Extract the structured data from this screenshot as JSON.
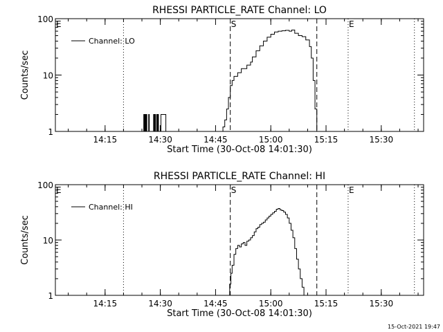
{
  "timestamp": "15-Oct-2021 19:47",
  "chart_data": [
    {
      "type": "line",
      "title": "RHESSI PARTICLE_RATE Channel: LO",
      "xlabel": "Start Time (30-Oct-08 14:01:30)",
      "ylabel": "Counts/sec",
      "y_scale": "log",
      "ylim": [
        1,
        100
      ],
      "xlim": [
        "14:01:30",
        "15:41:30"
      ],
      "x_ticks": [
        "14:15",
        "14:30",
        "14:45",
        "15:00",
        "15:15",
        "15:30"
      ],
      "y_ticks": [
        "1",
        "10",
        "100"
      ],
      "legend": {
        "placement": "top-left",
        "entries": [
          "Channel: LO"
        ]
      },
      "markers": [
        {
          "label": "E",
          "time": "14:01:30",
          "style": "none"
        },
        {
          "label": "",
          "time": "14:20:00",
          "style": "dotted"
        },
        {
          "label": "S",
          "time": "14:49:00",
          "style": "dashed"
        },
        {
          "label": "",
          "time": "15:12:30",
          "style": "dashed"
        },
        {
          "label": "E",
          "time": "15:21:00",
          "style": "dotted"
        },
        {
          "label": "",
          "time": "15:39:00",
          "style": "dotted"
        }
      ],
      "series": [
        {
          "name": "Channel: LO",
          "x": [
            "14:25:20",
            "14:25:30",
            "14:25:40",
            "14:25:50",
            "14:26:00",
            "14:26:10",
            "14:26:20",
            "14:26:40",
            "14:26:50",
            "14:27:00",
            "14:28:00",
            "14:28:10",
            "14:28:20",
            "14:28:30",
            "14:28:40",
            "14:28:50",
            "14:29:00",
            "14:29:10",
            "14:29:20",
            "14:29:30",
            "14:29:40",
            "14:30:00",
            "14:30:10",
            "14:31:20",
            "14:31:30",
            "14:32:40",
            "14:32:50",
            "14:46:30",
            "14:47:00",
            "14:47:30",
            "14:48:00",
            "14:48:30",
            "14:49:00",
            "14:49:30",
            "14:50:00",
            "14:51:00",
            "14:52:00",
            "14:52:40",
            "14:53:30",
            "14:54:30",
            "14:55:00",
            "14:56:00",
            "14:57:00",
            "14:58:00",
            "14:59:00",
            "15:00:00",
            "15:01:00",
            "15:02:00",
            "15:03:00",
            "15:04:00",
            "15:05:00",
            "15:05:40",
            "15:06:30",
            "15:07:30",
            "15:08:30",
            "15:09:30",
            "15:10:30",
            "15:11:00",
            "15:11:30",
            "15:12:00",
            "15:12:30"
          ],
          "values": [
            1,
            2,
            1,
            2,
            1,
            2,
            1,
            1,
            2,
            1,
            1,
            2,
            1,
            2,
            1,
            1,
            2,
            1,
            2,
            1,
            1,
            1,
            2,
            2,
            1,
            1,
            1,
            1,
            1.2,
            1.6,
            2.5,
            4,
            6.5,
            8,
            9.5,
            11,
            13,
            13,
            15,
            17,
            21,
            27,
            33,
            40,
            47,
            53,
            58,
            60,
            61,
            62,
            60,
            63,
            55,
            50,
            48,
            42,
            32,
            20,
            8,
            2.5,
            1
          ]
        }
      ]
    },
    {
      "type": "line",
      "title": "RHESSI PARTICLE_RATE Channel: HI",
      "xlabel": "Start Time (30-Oct-08 14:01:30)",
      "ylabel": "Counts/sec",
      "y_scale": "log",
      "ylim": [
        1,
        100
      ],
      "xlim": [
        "14:01:30",
        "15:41:30"
      ],
      "x_ticks": [
        "14:15",
        "14:30",
        "14:45",
        "15:00",
        "15:15",
        "15:30"
      ],
      "y_ticks": [
        "1",
        "10",
        "100"
      ],
      "legend": {
        "placement": "top-left",
        "entries": [
          "Channel: HI"
        ]
      },
      "markers": [
        {
          "label": "E",
          "time": "14:01:30",
          "style": "none"
        },
        {
          "label": "",
          "time": "14:20:00",
          "style": "dotted"
        },
        {
          "label": "S",
          "time": "14:49:00",
          "style": "dashed"
        },
        {
          "label": "",
          "time": "15:12:30",
          "style": "dashed"
        },
        {
          "label": "E",
          "time": "15:21:00",
          "style": "dotted"
        },
        {
          "label": "",
          "time": "15:39:00",
          "style": "dotted"
        }
      ],
      "series": [
        {
          "name": "Channel: HI",
          "x": [
            "14:48:30",
            "14:48:50",
            "14:49:10",
            "14:49:30",
            "14:50:00",
            "14:50:30",
            "14:51:00",
            "14:51:30",
            "14:52:00",
            "14:52:30",
            "14:53:00",
            "14:53:30",
            "14:54:00",
            "14:54:30",
            "14:55:00",
            "14:55:30",
            "14:56:00",
            "14:56:30",
            "14:57:00",
            "14:57:30",
            "14:58:00",
            "14:58:30",
            "14:59:00",
            "14:59:30",
            "15:00:00",
            "15:00:30",
            "15:01:00",
            "15:01:30",
            "15:02:00",
            "15:02:30",
            "15:03:00",
            "15:03:30",
            "15:04:00",
            "15:04:30",
            "15:05:00",
            "15:05:30",
            "15:06:00",
            "15:06:30",
            "15:07:00",
            "15:07:30",
            "15:08:00",
            "15:08:30",
            "15:09:00"
          ],
          "values": [
            1,
            1.6,
            2.5,
            3.5,
            5.5,
            7,
            8,
            7.5,
            8.5,
            9,
            8,
            9.5,
            10,
            11,
            12,
            14,
            16,
            17,
            19,
            20,
            21,
            23,
            25,
            27,
            29,
            31,
            33,
            36,
            37,
            35,
            34,
            32,
            29,
            25,
            20,
            15,
            11,
            7,
            4.5,
            3,
            2,
            1.4,
            1
          ]
        }
      ]
    }
  ]
}
